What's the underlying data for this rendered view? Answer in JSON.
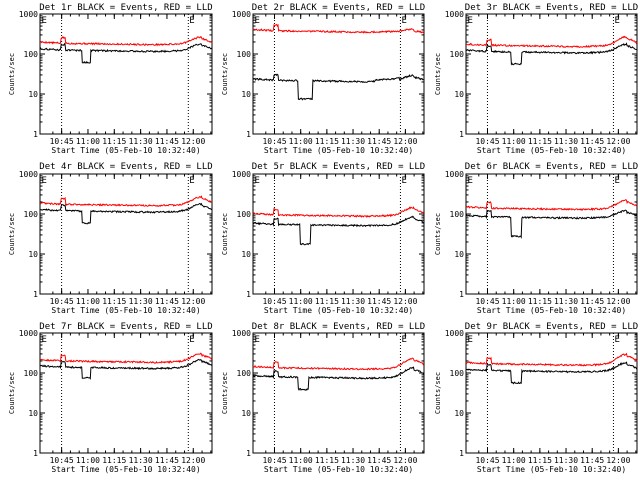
{
  "colors": {
    "events": "#000000",
    "lld": "#ff0000",
    "axis": "#000000",
    "background": "#ffffff"
  },
  "common": {
    "ylabel": "Counts/sec",
    "xlabel": "Start Time (05-Feb-10 10:32:40)",
    "x_unit": "minutes since 10:32:40",
    "x_range": [
      0,
      98
    ],
    "y_range": [
      1,
      1000
    ],
    "y_scale": "log",
    "y_ticks": [
      1,
      10,
      100,
      1000
    ],
    "y_tick_labels": [
      "1",
      "10",
      "100",
      "1000"
    ],
    "x_ticks": [
      12.33,
      27.33,
      42.33,
      57.33,
      72.33,
      87.33
    ],
    "x_tick_labels": [
      "10:45",
      "11:00",
      "11:15",
      "11:30",
      "11:45",
      "12:00"
    ],
    "event_markers": [
      {
        "label": "E",
        "x": 0.3
      },
      {
        "label": "E",
        "x": 84.5
      }
    ],
    "dotted_lines_x": [
      12.3,
      84.5
    ]
  },
  "chart_data": [
    {
      "type": "line",
      "title": "Det 1r BLACK = Events, RED = LLD",
      "det": "1r",
      "series": [
        {
          "name": "LLD",
          "color": "#ff0000",
          "level": 185,
          "bump": 1.45,
          "dip": 1,
          "dip_range": [
            12.5,
            14.5
          ]
        },
        {
          "name": "Events",
          "color": "#000000",
          "level": 125,
          "bump": 1.45,
          "dip": 0.5,
          "dip_range": [
            24,
            29
          ]
        }
      ]
    },
    {
      "type": "line",
      "title": "Det 2r BLACK = Events, RED = LLD",
      "det": "2r",
      "series": [
        {
          "name": "LLD",
          "color": "#ff0000",
          "level": 380,
          "bump": 1.1,
          "dip": 1,
          "dip_range": [
            12.5,
            14.5
          ]
        },
        {
          "name": "Events",
          "color": "#000000",
          "level": 22,
          "bump": 1.35,
          "dip": 0.35,
          "dip_range": [
            26,
            34
          ]
        }
      ]
    },
    {
      "type": "line",
      "title": "Det 3r BLACK = Events, RED = LLD",
      "det": "3r",
      "series": [
        {
          "name": "LLD",
          "color": "#ff0000",
          "level": 165,
          "bump": 1.65,
          "dip": 1,
          "dip_range": [
            12.5,
            14.5
          ]
        },
        {
          "name": "Events",
          "color": "#000000",
          "level": 115,
          "bump": 1.55,
          "dip": 0.5,
          "dip_range": [
            26,
            32
          ]
        }
      ]
    },
    {
      "type": "line",
      "title": "Det 4r BLACK = Events, RED = LLD",
      "det": "4r",
      "series": [
        {
          "name": "LLD",
          "color": "#ff0000",
          "level": 175,
          "bump": 1.55,
          "dip": 1,
          "dip_range": [
            12.5,
            14.5
          ]
        },
        {
          "name": "Events",
          "color": "#000000",
          "level": 120,
          "bump": 1.5,
          "dip": 0.5,
          "dip_range": [
            24,
            29
          ]
        }
      ]
    },
    {
      "type": "line",
      "title": "Det 5r BLACK = Events, RED = LLD",
      "det": "5r",
      "series": [
        {
          "name": "LLD",
          "color": "#ff0000",
          "level": 95,
          "bump": 1.55,
          "dip": 1,
          "dip_range": [
            12.5,
            14.5
          ]
        },
        {
          "name": "Events",
          "color": "#000000",
          "level": 55,
          "bump": 1.55,
          "dip": 0.33,
          "dip_range": [
            27,
            33
          ]
        }
      ]
    },
    {
      "type": "line",
      "title": "Det 6r BLACK = Events, RED = LLD",
      "det": "6r",
      "series": [
        {
          "name": "LLD",
          "color": "#ff0000",
          "level": 140,
          "bump": 1.6,
          "dip": 1,
          "dip_range": [
            12.5,
            14.5
          ]
        },
        {
          "name": "Events",
          "color": "#000000",
          "level": 85,
          "bump": 1.45,
          "dip": 0.33,
          "dip_range": [
            26,
            32
          ]
        }
      ]
    },
    {
      "type": "line",
      "title": "Det 7r BLACK = Events, RED = LLD",
      "det": "7r",
      "series": [
        {
          "name": "LLD",
          "color": "#ff0000",
          "level": 200,
          "bump": 1.55,
          "dip": 1,
          "dip_range": [
            12.5,
            14.5
          ]
        },
        {
          "name": "Events",
          "color": "#000000",
          "level": 140,
          "bump": 1.55,
          "dip": 0.55,
          "dip_range": [
            24,
            29
          ]
        }
      ]
    },
    {
      "type": "line",
      "title": "Det 8r BLACK = Events, RED = LLD",
      "det": "8r",
      "series": [
        {
          "name": "LLD",
          "color": "#ff0000",
          "level": 135,
          "bump": 1.75,
          "dip": 1,
          "dip_range": [
            12.5,
            14.5
          ]
        },
        {
          "name": "Events",
          "color": "#000000",
          "level": 80,
          "bump": 1.7,
          "dip": 0.5,
          "dip_range": [
            26,
            32
          ]
        }
      ]
    },
    {
      "type": "line",
      "title": "Det 9r BLACK = Events, RED = LLD",
      "det": "9r",
      "series": [
        {
          "name": "LLD",
          "color": "#ff0000",
          "level": 170,
          "bump": 1.75,
          "dip": 1,
          "dip_range": [
            12.5,
            14.5
          ]
        },
        {
          "name": "Events",
          "color": "#000000",
          "level": 115,
          "bump": 1.6,
          "dip": 0.5,
          "dip_range": [
            26,
            32
          ]
        }
      ]
    }
  ]
}
